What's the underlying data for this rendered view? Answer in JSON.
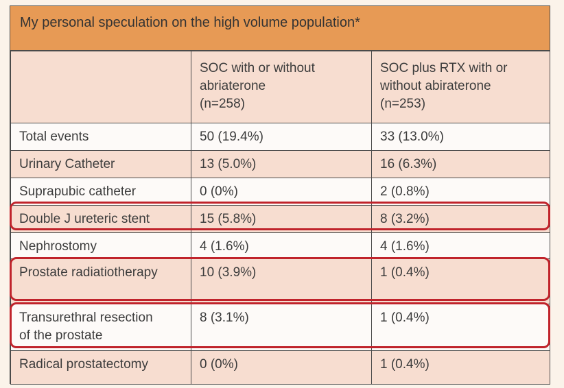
{
  "title": "My personal speculation on the high volume population*",
  "columns": [
    "",
    "SOC with or without abriaterone (n=258)",
    "SOC plus RTX with or without abiraterone (n=253)"
  ],
  "column_lines": [
    [
      ""
    ],
    [
      "SOC with or without",
      "abriaterone",
      "(n=258)"
    ],
    [
      "SOC plus RTX with or",
      "without abiraterone",
      "(n=253)"
    ]
  ],
  "rows": [
    {
      "label": "Total events",
      "soc": "50 (19.4%)",
      "rtx": "33 (13.0%)",
      "highlight": false
    },
    {
      "label": "Urinary Catheter",
      "soc": "13 (5.0%)",
      "rtx": "16 (6.3%)",
      "highlight": false
    },
    {
      "label": "Suprapubic catheter",
      "soc": "0 (0%)",
      "rtx": "2 (0.8%)",
      "highlight": false
    },
    {
      "label": "Double J ureteric stent",
      "soc": "15 (5.8%)",
      "rtx": "8 (3.2%)",
      "highlight": true
    },
    {
      "label": "Nephrostomy",
      "soc": "4 (1.6%)",
      "rtx": "4 (1.6%)",
      "highlight": false
    },
    {
      "label": "Prostate radiatiotherapy",
      "soc": "10 (3.9%)",
      "rtx": "1 (0.4%)",
      "highlight": true
    },
    {
      "label": "Transurethral resection of the prostate",
      "label_lines": [
        "Transurethral resection",
        "of the prostate"
      ],
      "soc": "8 (3.1%)",
      "rtx": "1 (0.4%)",
      "highlight": true
    },
    {
      "label": "Radical prostatectomy",
      "soc": "0 (0%)",
      "rtx": "1 (0.4%)",
      "highlight": false
    }
  ],
  "colors": {
    "title_bar": "#e79a55",
    "shaded_row": "#f7ddd0",
    "highlight_border": "#c0232b"
  }
}
